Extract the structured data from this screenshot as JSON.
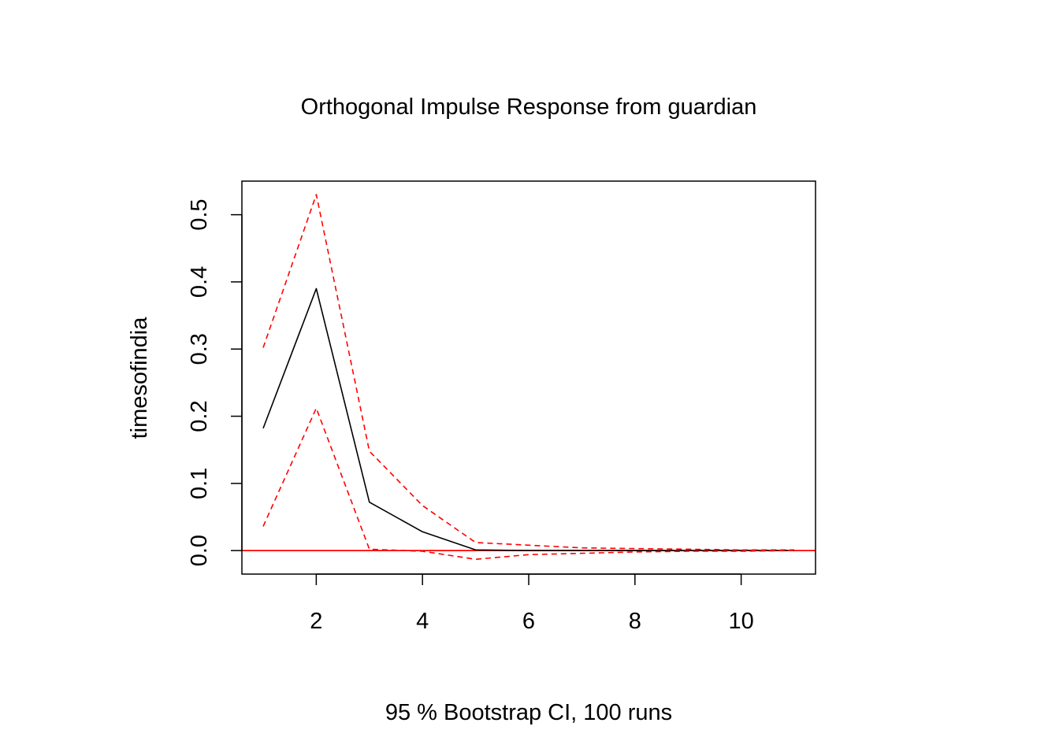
{
  "chart_data": {
    "type": "line",
    "title": "Orthogonal Impulse Response from guardian",
    "xlabel": "95 % Bootstrap CI,  100 runs",
    "ylabel": "timesofindia",
    "xlim": [
      0.6,
      11.4
    ],
    "ylim": [
      -0.035,
      0.55
    ],
    "x_ticks": [
      2,
      4,
      6,
      8,
      10
    ],
    "y_ticks": [
      0.0,
      0.1,
      0.2,
      0.3,
      0.4,
      0.5
    ],
    "x_tick_labels": [
      "2",
      "4",
      "6",
      "8",
      "10"
    ],
    "y_tick_labels": [
      "0.0",
      "0.1",
      "0.2",
      "0.3",
      "0.4",
      "0.5"
    ],
    "x": [
      1,
      2,
      3,
      4,
      5,
      6,
      7,
      8,
      9,
      10,
      11
    ],
    "series": [
      {
        "key": "irf",
        "values": [
          0.182,
          0.39,
          0.072,
          0.028,
          0.001,
          0.0,
          0.0,
          0.0,
          0.0,
          0.0,
          0.0
        ],
        "color": "#000000",
        "style": "solid"
      },
      {
        "key": "upper",
        "values": [
          0.302,
          0.53,
          0.148,
          0.067,
          0.012,
          0.008,
          0.004,
          0.003,
          0.002,
          0.001,
          0.001
        ],
        "color": "#ff0000",
        "style": "dashed"
      },
      {
        "key": "lower",
        "values": [
          0.036,
          0.212,
          0.002,
          -0.001,
          -0.013,
          -0.006,
          -0.004,
          -0.002,
          -0.001,
          -0.001,
          0.0
        ],
        "color": "#ff0000",
        "style": "dashed"
      }
    ],
    "reference_line": {
      "y": 0,
      "color": "#ff0000"
    },
    "grid": false,
    "legend": "none"
  }
}
